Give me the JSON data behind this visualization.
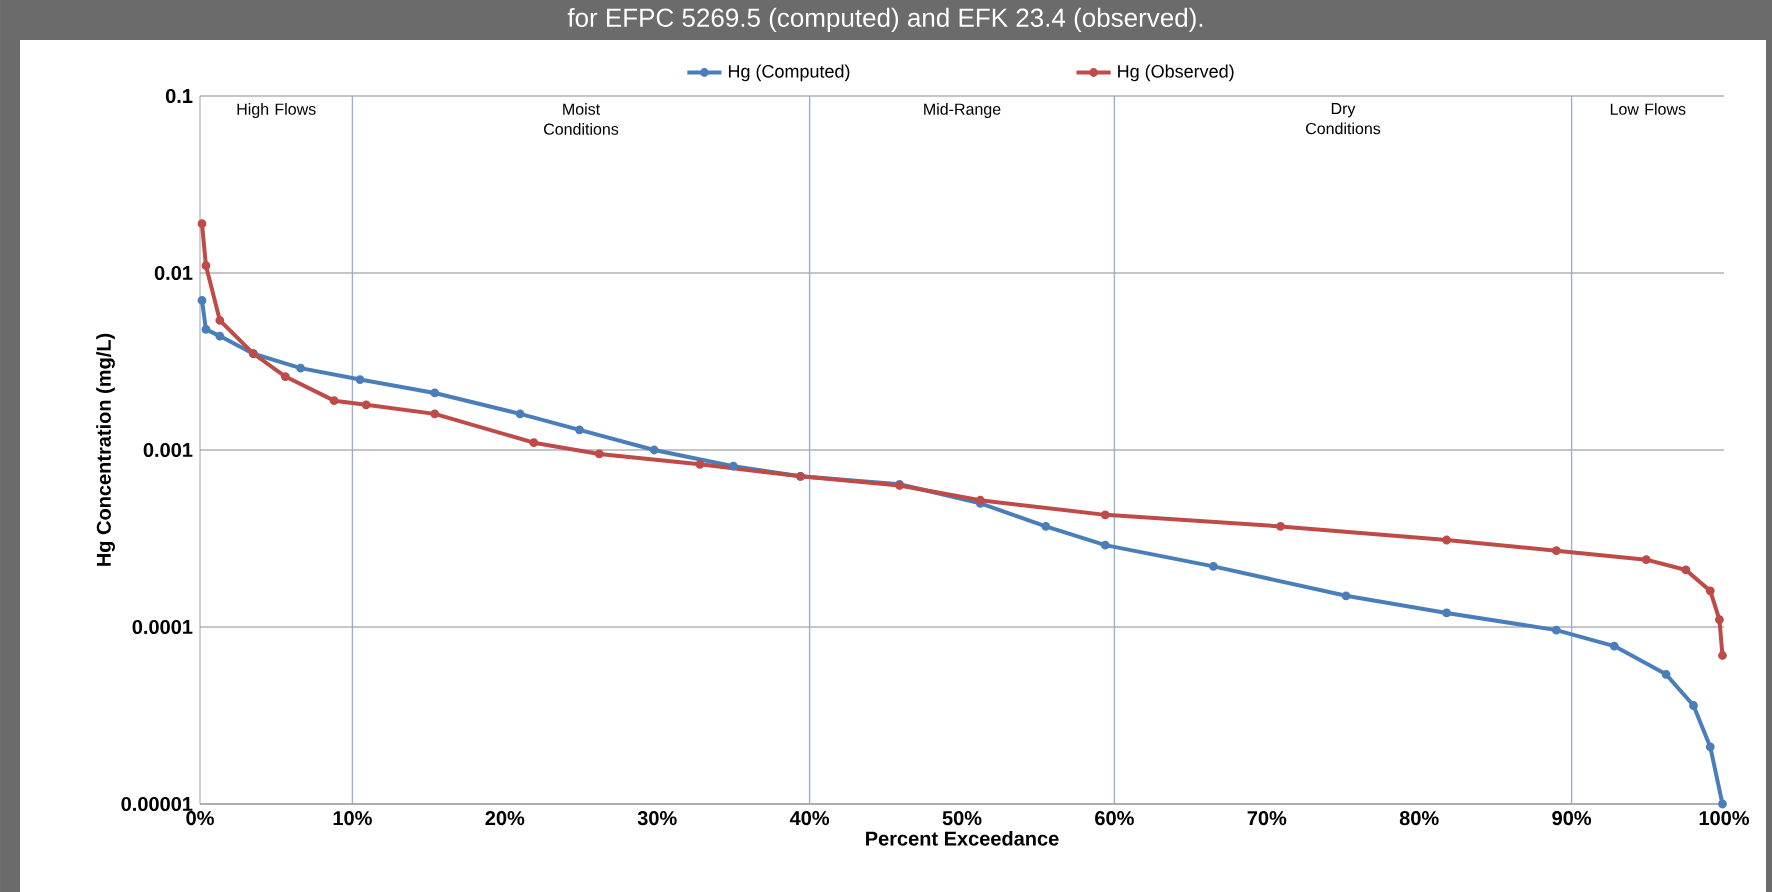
{
  "chart_data": {
    "type": "line",
    "title": "for EFPC 5269.5 (computed) and EFK 23.4 (observed).",
    "xlabel": "Percent Exceedance",
    "ylabel": "Hg Concentration (mg/L)",
    "series": [
      {
        "name": "Hg (Computed)",
        "color": "#4a7ebb",
        "x": [
          0.13,
          0.39,
          1.3,
          3.5,
          6.6,
          10.5,
          15.4,
          21.0,
          24.9,
          29.8,
          35.0,
          39.4,
          45.9,
          51.2,
          55.5,
          59.4,
          66.5,
          75.2,
          81.8,
          89.0,
          92.8,
          96.2,
          98.0,
          99.1,
          99.9
        ],
        "values": [
          0.007,
          0.0048,
          0.0044,
          0.0035,
          0.0029,
          0.0025,
          0.0021,
          0.0016,
          0.0013,
          0.001,
          0.00081,
          0.00071,
          0.00064,
          0.0005,
          0.00037,
          0.00029,
          0.00022,
          0.00015,
          0.00012,
          9.6e-05,
          7.8e-05,
          5.4e-05,
          3.6e-05,
          2.1e-05,
          1e-05
        ]
      },
      {
        "name": "Hg (Observed)",
        "color": "#be4b48",
        "x": [
          0.13,
          0.39,
          1.3,
          3.5,
          5.6,
          8.8,
          10.9,
          15.4,
          21.9,
          26.2,
          32.8,
          39.4,
          45.9,
          51.2,
          59.4,
          70.9,
          81.8,
          89.0,
          94.9,
          97.5,
          99.1,
          99.7,
          99.9
        ],
        "values": [
          0.019,
          0.011,
          0.0054,
          0.0035,
          0.0026,
          0.0019,
          0.0018,
          0.0016,
          0.0011,
          0.00095,
          0.00083,
          0.00071,
          0.00063,
          0.00052,
          0.00043,
          0.00037,
          0.00031,
          0.00027,
          0.00024,
          0.00021,
          0.00016,
          0.00011,
          6.9e-05
        ]
      }
    ],
    "xlim": [
      0,
      100
    ],
    "xticks": [
      {
        "value": 0,
        "label": "0%"
      },
      {
        "value": 10,
        "label": "10%"
      },
      {
        "value": 20,
        "label": "20%"
      },
      {
        "value": 30,
        "label": "30%"
      },
      {
        "value": 40,
        "label": "40%"
      },
      {
        "value": 50,
        "label": "50%"
      },
      {
        "value": 60,
        "label": "60%"
      },
      {
        "value": 70,
        "label": "70%"
      },
      {
        "value": 80,
        "label": "80%"
      },
      {
        "value": 90,
        "label": "90%"
      },
      {
        "value": 100,
        "label": "100%"
      }
    ],
    "ylim": [
      1e-05,
      0.1
    ],
    "yticks": [
      {
        "value": 1e-05,
        "label": "0.00001"
      },
      {
        "value": 0.0001,
        "label": "0.0001"
      },
      {
        "value": 0.001,
        "label": "0.001"
      },
      {
        "value": 0.01,
        "label": "0.01"
      },
      {
        "value": 0.1,
        "label": "0.1"
      }
    ],
    "log": "y",
    "grid": "y",
    "legend": "top",
    "marker": "circle",
    "line_style": "solid",
    "ref_lines": [
      {
        "axis": "x",
        "value": 10,
        "color": "#9bb0c8"
      },
      {
        "axis": "x",
        "value": 40,
        "color": "#9bb0c8"
      },
      {
        "axis": "x",
        "value": 60,
        "color": "#9bb0c8"
      },
      {
        "axis": "x",
        "value": 90,
        "color": "#9bb0c8"
      }
    ],
    "annotations": [
      "High Flows",
      "Moist Conditions",
      "Mid-Range",
      "Dry Conditions",
      "Low Flows"
    ]
  }
}
